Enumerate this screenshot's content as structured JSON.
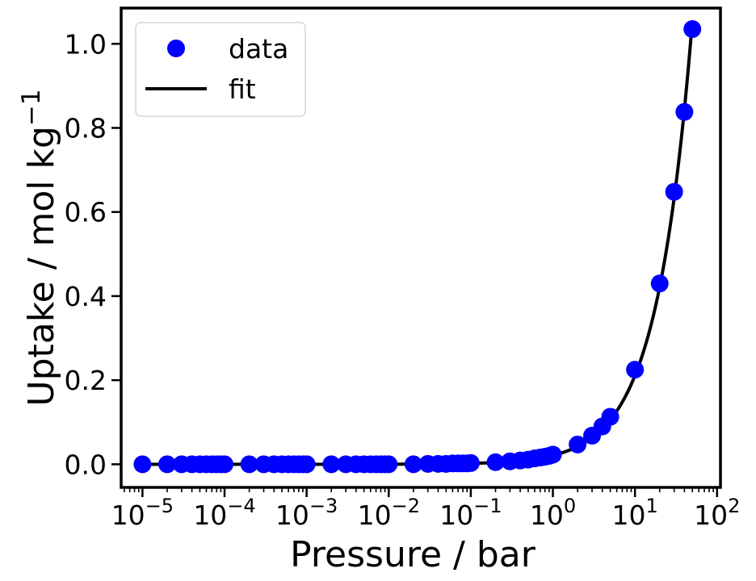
{
  "chart_data": {
    "type": "scatter",
    "xscale": "log",
    "xlabel": "Pressure / bar",
    "ylabel_main": "Uptake / mol kg",
    "ylabel_sup": "−1",
    "xlim": [
      5.5e-06,
      110
    ],
    "ylim": [
      -0.055,
      1.085
    ],
    "xticks": [
      {
        "base": "10",
        "exp": "−5",
        "value": 1e-05
      },
      {
        "base": "10",
        "exp": "−4",
        "value": 0.0001
      },
      {
        "base": "10",
        "exp": "−3",
        "value": 0.001
      },
      {
        "base": "10",
        "exp": "−2",
        "value": 0.01
      },
      {
        "base": "10",
        "exp": "−1",
        "value": 0.1
      },
      {
        "base": "10",
        "exp": "0",
        "value": 1
      },
      {
        "base": "10",
        "exp": "1",
        "value": 10
      },
      {
        "base": "10",
        "exp": "2",
        "value": 100
      }
    ],
    "yticks": [
      {
        "label": "0.0",
        "value": 0.0
      },
      {
        "label": "0.2",
        "value": 0.2
      },
      {
        "label": "0.4",
        "value": 0.4
      },
      {
        "label": "0.6",
        "value": 0.6
      },
      {
        "label": "0.8",
        "value": 0.8
      },
      {
        "label": "1.0",
        "value": 1.0
      }
    ],
    "grid": false,
    "legend_position": "top-left",
    "colors": {
      "data": "#0000ff",
      "fit": "#000000"
    },
    "series": [
      {
        "name": "data",
        "kind": "scatter",
        "x": [
          1e-05,
          2e-05,
          3e-05,
          4e-05,
          5e-05,
          6e-05,
          7e-05,
          8e-05,
          9e-05,
          0.0001,
          0.0002,
          0.0003,
          0.0004,
          0.0005,
          0.0006,
          0.0007,
          0.0008,
          0.0009,
          0.001,
          0.002,
          0.003,
          0.004,
          0.005,
          0.006,
          0.007,
          0.008,
          0.009,
          0.01,
          0.02,
          0.03,
          0.04,
          0.05,
          0.06,
          0.07,
          0.08,
          0.09,
          0.1,
          0.2,
          0.3,
          0.4,
          0.5,
          0.6,
          0.7,
          0.8,
          0.9,
          1,
          2,
          3,
          4,
          5,
          10,
          20,
          30,
          40,
          50
        ],
        "y": [
          0,
          0,
          0,
          0,
          0,
          0,
          0,
          0,
          0,
          0,
          0,
          0,
          0,
          0,
          0,
          0,
          0,
          0,
          0,
          0,
          0,
          0,
          0,
          0,
          0,
          0,
          0,
          0,
          0,
          0.001,
          0.001,
          0.001,
          0.002,
          0.002,
          0.002,
          0.002,
          0.003,
          0.005,
          0.007,
          0.009,
          0.011,
          0.014,
          0.016,
          0.018,
          0.02,
          0.023,
          0.047,
          0.068,
          0.09,
          0.113,
          0.225,
          0.43,
          0.648,
          0.838,
          1.035
        ]
      },
      {
        "name": "fit",
        "kind": "line",
        "slope": 0.0211,
        "x_range": [
          1e-05,
          50
        ]
      }
    ]
  }
}
